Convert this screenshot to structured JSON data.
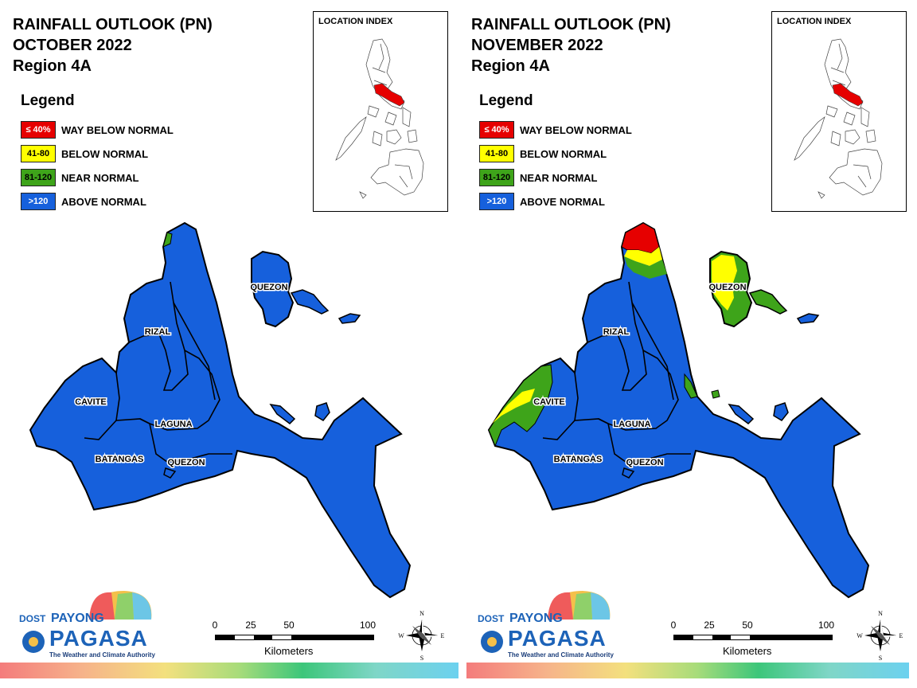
{
  "colors": {
    "way_below": "#e60000",
    "below": "#ffff00",
    "near": "#3ea41a",
    "above": "#1660dc",
    "outline": "#000000"
  },
  "panels": [
    {
      "title_line1": "RAINFALL OUTLOOK (PN)",
      "title_line2": "OCTOBER 2022",
      "title_line3": "Region 4A",
      "legend": {
        "title": "Legend",
        "items": [
          {
            "code": "≤ 40%",
            "label": "WAY BELOW NORMAL"
          },
          {
            "code": "41-80",
            "label": "BELOW NORMAL"
          },
          {
            "code": "81-120",
            "label": "NEAR NORMAL"
          },
          {
            "code": ">120",
            "label": "ABOVE NORMAL"
          }
        ]
      },
      "location_index": "LOCATION INDEX",
      "provinces": {
        "quezon_north": "QUEZON",
        "rizal": "RIZAL",
        "cavite": "CAVITE",
        "laguna": "LAGUNA",
        "batangas": "BATANGAS",
        "quezon_south": "QUEZON"
      },
      "scale": {
        "ticks": [
          "0",
          "25",
          "50",
          "100"
        ],
        "unit": "Kilometers"
      },
      "compass": {
        "n": "N",
        "s": "S",
        "e": "E",
        "w": "W"
      },
      "logo": {
        "dost": "DOST",
        "payong": "PAYONG",
        "pagasa": "PAGASA",
        "tagline": "The Weather and Climate Authority"
      }
    },
    {
      "title_line1": "RAINFALL OUTLOOK (PN)",
      "title_line2": "NOVEMBER 2022",
      "title_line3": "Region 4A",
      "legend": {
        "title": "Legend",
        "items": [
          {
            "code": "≤ 40%",
            "label": "WAY BELOW NORMAL"
          },
          {
            "code": "41-80",
            "label": "BELOW NORMAL"
          },
          {
            "code": "81-120",
            "label": "NEAR NORMAL"
          },
          {
            "code": ">120",
            "label": "ABOVE NORMAL"
          }
        ]
      },
      "location_index": "LOCATION INDEX",
      "provinces": {
        "quezon_north": "QUEZON",
        "rizal": "RIZAL",
        "cavite": "CAVITE",
        "laguna": "LAGUNA",
        "batangas": "BATANGAS",
        "quezon_south": "QUEZON"
      },
      "scale": {
        "ticks": [
          "0",
          "25",
          "50",
          "100"
        ],
        "unit": "Kilometers"
      },
      "compass": {
        "n": "N",
        "s": "S",
        "e": "E",
        "w": "W"
      },
      "logo": {
        "dost": "DOST",
        "payong": "PAYONG",
        "pagasa": "PAGASA",
        "tagline": "The Weather and Climate Authority"
      }
    }
  ]
}
